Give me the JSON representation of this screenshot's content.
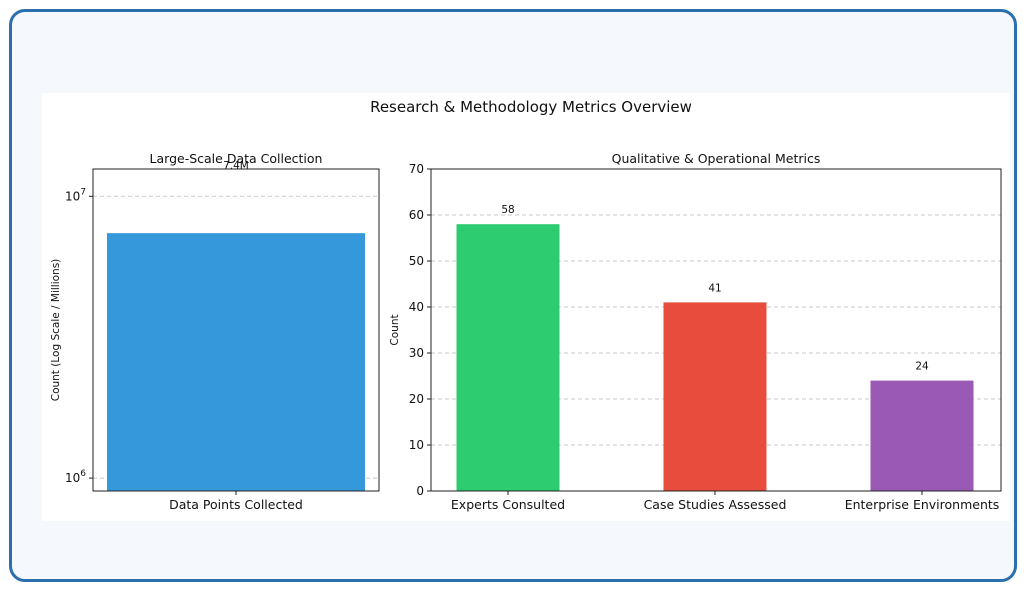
{
  "figure_title": "Research & Methodology Metrics Overview",
  "chart_data": [
    {
      "type": "bar",
      "title": "Large-Scale Data Collection",
      "categories": [
        "Data Points Collected"
      ],
      "values": [
        7400000
      ],
      "data_labels": [
        "7.4M"
      ],
      "ylabel": "Count (Log Scale / Millions)",
      "yscale": "log",
      "ylim": [
        900000,
        12500000
      ],
      "yticks": [
        1000000,
        10000000
      ],
      "ytick_labels": [
        {
          "base": "10",
          "exp": "6"
        },
        {
          "base": "10",
          "exp": "7"
        }
      ],
      "grid": true,
      "colors": [
        "#3498db"
      ]
    },
    {
      "type": "bar",
      "title": "Qualitative & Operational Metrics",
      "categories": [
        "Experts Consulted",
        "Case Studies Assessed",
        "Enterprise Environments"
      ],
      "values": [
        58,
        41,
        24
      ],
      "data_labels": [
        "58",
        "41",
        "24"
      ],
      "ylabel": "Count",
      "ylim": [
        0,
        70
      ],
      "yticks": [
        0,
        10,
        20,
        30,
        40,
        50,
        60,
        70
      ],
      "grid": true,
      "colors": [
        "#2ecc71",
        "#e74c3c",
        "#9b59b6"
      ]
    }
  ]
}
